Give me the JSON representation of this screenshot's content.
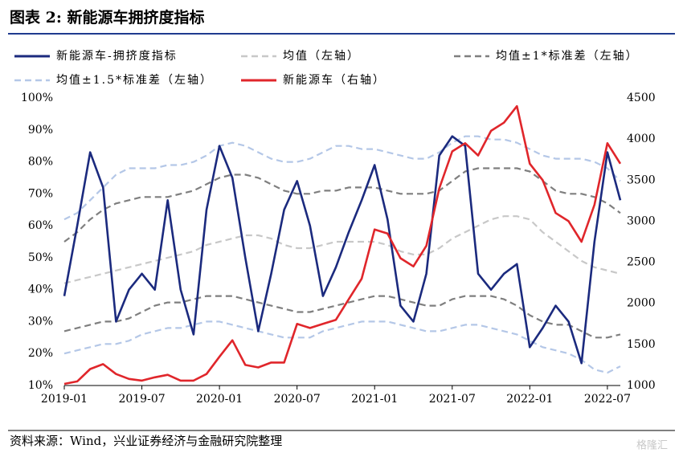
{
  "chart_data": {
    "type": "line",
    "title": "图表 2:  新能源车拥挤度指标",
    "source": "资料来源：Wind，兴业证券经济与金融研究院整理",
    "watermark": "格隆汇",
    "x": [
      "2019-01",
      "2019-02",
      "2019-03",
      "2019-04",
      "2019-05",
      "2019-06",
      "2019-07",
      "2019-08",
      "2019-09",
      "2019-10",
      "2019-11",
      "2019-12",
      "2020-01",
      "2020-02",
      "2020-03",
      "2020-04",
      "2020-05",
      "2020-06",
      "2020-07",
      "2020-08",
      "2020-09",
      "2020-10",
      "2020-11",
      "2020-12",
      "2021-01",
      "2021-02",
      "2021-03",
      "2021-04",
      "2021-05",
      "2021-06",
      "2021-07",
      "2021-08",
      "2021-09",
      "2021-10",
      "2021-11",
      "2021-12",
      "2022-01",
      "2022-02",
      "2022-03",
      "2022-04",
      "2022-05",
      "2022-06",
      "2022-07",
      "2022-08"
    ],
    "xlim": [
      "2019-01",
      "2022-08"
    ],
    "xticks": [
      "2019-01",
      "2019-07",
      "2020-01",
      "2020-07",
      "2021-01",
      "2021-07",
      "2022-01",
      "2022-07"
    ],
    "ylim": [
      10,
      100
    ],
    "yticks": [
      {
        "value": 10,
        "label": "10%"
      },
      {
        "value": 20,
        "label": "20%"
      },
      {
        "value": 30,
        "label": "30%"
      },
      {
        "value": 40,
        "label": "40%"
      },
      {
        "value": 50,
        "label": "50%"
      },
      {
        "value": 60,
        "label": "60%"
      },
      {
        "value": 70,
        "label": "70%"
      },
      {
        "value": 80,
        "label": "80%"
      },
      {
        "value": 90,
        "label": "90%"
      },
      {
        "value": 100,
        "label": "100%"
      }
    ],
    "y2lim": [
      1000,
      4500
    ],
    "y2ticks": [
      1000,
      1500,
      2000,
      2500,
      3000,
      3500,
      4000,
      4500
    ],
    "series": [
      {
        "name": "新能源车-拥挤度指标",
        "color": "#1b2a7e",
        "dash": false,
        "values": [
          38,
          60,
          83,
          72,
          30,
          40,
          45,
          40,
          68,
          40,
          26,
          65,
          85,
          75,
          50,
          27,
          45,
          65,
          74,
          60,
          38,
          47,
          58,
          68,
          79,
          62,
          35,
          30,
          45,
          82,
          88,
          85,
          45,
          40,
          45,
          48,
          22,
          28,
          35,
          30,
          17,
          55,
          83,
          68
        ]
      },
      {
        "name": "均值（左轴）",
        "color": "#c8c8c8",
        "dash": true,
        "values": [
          42,
          43,
          44,
          45,
          46,
          47,
          48,
          49,
          50,
          51,
          52,
          54,
          55,
          56,
          57,
          57,
          56,
          54,
          53,
          53,
          54,
          55,
          55,
          55,
          55,
          54,
          52,
          51,
          51,
          53,
          56,
          58,
          60,
          62,
          63,
          63,
          62,
          58,
          55,
          52,
          49,
          47,
          46,
          45
        ]
      },
      {
        "name": "均值±1*标准差（左轴）",
        "color": "#7f7f7f",
        "dash": true,
        "upper": [
          55,
          58,
          62,
          65,
          67,
          68,
          69,
          69,
          69,
          70,
          71,
          73,
          75,
          76,
          76,
          75,
          73,
          71,
          70,
          70,
          71,
          71,
          72,
          72,
          72,
          71,
          70,
          70,
          70,
          71,
          74,
          77,
          78,
          78,
          78,
          78,
          77,
          74,
          71,
          70,
          70,
          69,
          67,
          64
        ],
        "lower": [
          27,
          28,
          29,
          30,
          30,
          31,
          33,
          35,
          36,
          36,
          37,
          38,
          38,
          38,
          37,
          36,
          35,
          34,
          33,
          33,
          34,
          35,
          36,
          37,
          38,
          38,
          37,
          36,
          35,
          35,
          37,
          38,
          38,
          38,
          37,
          35,
          32,
          30,
          29,
          29,
          27,
          25,
          25,
          26
        ]
      },
      {
        "name": "均值±1.5*标准差（左轴）",
        "color": "#b4c7e7",
        "dash": true,
        "upper": [
          62,
          64,
          68,
          72,
          76,
          78,
          78,
          78,
          79,
          79,
          80,
          82,
          85,
          86,
          85,
          83,
          81,
          80,
          80,
          81,
          83,
          85,
          85,
          84,
          84,
          83,
          82,
          81,
          81,
          83,
          86,
          88,
          88,
          87,
          87,
          86,
          84,
          82,
          81,
          81,
          81,
          80,
          78,
          74
        ],
        "lower": [
          20,
          21,
          22,
          23,
          23,
          24,
          26,
          27,
          28,
          28,
          29,
          30,
          30,
          29,
          28,
          27,
          26,
          25,
          25,
          25,
          27,
          28,
          29,
          30,
          30,
          30,
          29,
          28,
          27,
          27,
          28,
          29,
          29,
          28,
          27,
          26,
          24,
          22,
          21,
          20,
          18,
          15,
          14,
          16
        ]
      },
      {
        "name": "新能源车（右轴）",
        "color": "#e0262b",
        "dash": false,
        "axis": "y2",
        "values": [
          1020,
          1050,
          1200,
          1260,
          1140,
          1080,
          1060,
          1100,
          1130,
          1060,
          1060,
          1140,
          1350,
          1550,
          1250,
          1220,
          1280,
          1280,
          1750,
          1700,
          1750,
          1800,
          2050,
          2300,
          2900,
          2850,
          2550,
          2450,
          2700,
          3400,
          3850,
          3950,
          3800,
          4100,
          4200,
          4400,
          3700,
          3500,
          3100,
          3000,
          2750,
          3200,
          3950,
          3700
        ]
      }
    ]
  }
}
